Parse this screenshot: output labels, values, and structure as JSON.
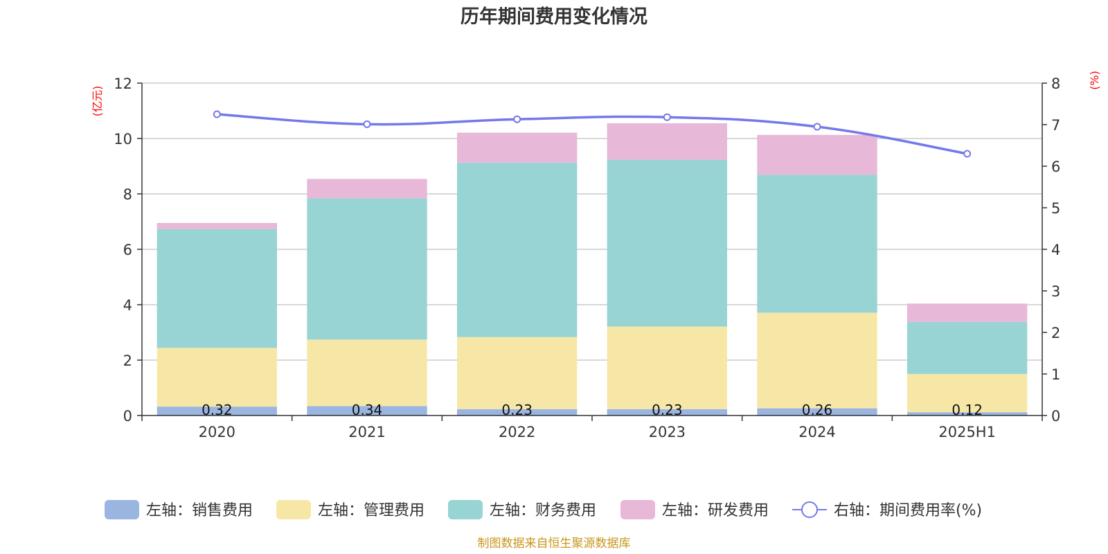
{
  "chart_data": {
    "type": "bar",
    "title": "历年期间费用变化情况",
    "categories": [
      "2020",
      "2021",
      "2022",
      "2023",
      "2024",
      "2025H1"
    ],
    "left_axis": {
      "unit": "(亿元)",
      "ylim": [
        0,
        12
      ],
      "ticks": [
        "0",
        "2",
        "4",
        "6",
        "8",
        "10",
        "12"
      ]
    },
    "right_axis": {
      "unit": "(%)",
      "ylim": [
        0,
        8
      ],
      "ticks": [
        "0",
        "1",
        "2",
        "3",
        "4",
        "5",
        "6",
        "7",
        "8"
      ]
    },
    "grid": true,
    "legend_position": "bottom",
    "series": [
      {
        "name": "左轴：销售费用",
        "type": "bar",
        "stack": true,
        "axis": "left",
        "color": "#9bb5e1",
        "values": [
          0.32,
          0.34,
          0.23,
          0.23,
          0.26,
          0.12
        ],
        "labels": [
          "0.32",
          "0.34",
          "0.23",
          "0.23",
          "0.26",
          "0.12"
        ]
      },
      {
        "name": "左轴：管理费用",
        "type": "bar",
        "stack": true,
        "axis": "left",
        "color": "#f7e7a7",
        "values": [
          2.12,
          2.4,
          2.6,
          2.98,
          3.45,
          1.38
        ]
      },
      {
        "name": "左轴：财务费用",
        "type": "bar",
        "stack": true,
        "axis": "left",
        "color": "#98d4d4",
        "values": [
          4.29,
          5.1,
          6.3,
          6.02,
          4.98,
          1.88
        ]
      },
      {
        "name": "左轴：研发费用",
        "type": "bar",
        "stack": true,
        "axis": "left",
        "color": "#e7b8d8",
        "values": [
          0.22,
          0.7,
          1.08,
          1.32,
          1.44,
          0.66
        ]
      },
      {
        "name": "右轴：期间费用率(%)",
        "type": "line",
        "axis": "right",
        "color": "#7478ea",
        "values": [
          7.25,
          7.01,
          7.13,
          7.18,
          6.95,
          6.3
        ]
      }
    ]
  },
  "source_note": "制图数据来自恒生聚源数据库"
}
